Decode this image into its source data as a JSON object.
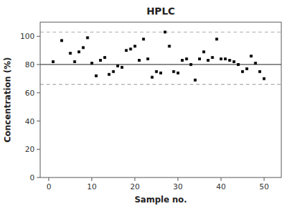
{
  "chart_data": {
    "type": "scatter",
    "title": "HPLC",
    "x_label": "Sample no.",
    "y_label": "Concentration (%)",
    "x": [
      1,
      3,
      5,
      6,
      7,
      8,
      9,
      10,
      11,
      12,
      13,
      14,
      15,
      16,
      17,
      18,
      19,
      20,
      21,
      22,
      23,
      24,
      25,
      26,
      27,
      28,
      29,
      30,
      31,
      32,
      33,
      34,
      35,
      36,
      37,
      38,
      39,
      40,
      41,
      42,
      43,
      44,
      45,
      46,
      47,
      48,
      49,
      50
    ],
    "values": [
      82,
      97,
      88,
      82,
      89,
      92,
      99,
      81,
      72,
      83,
      85,
      73,
      75,
      79,
      78,
      90,
      91,
      93,
      83,
      98,
      84,
      71,
      75,
      74,
      103,
      93,
      75,
      74,
      83,
      84,
      80,
      69,
      84,
      89,
      83,
      85,
      98,
      84,
      84,
      83,
      82,
      80,
      75,
      77,
      86,
      81,
      75,
      70
    ],
    "color": "#000000",
    "marker": "square",
    "reference_lines": [
      {
        "value": 80,
        "color": "#666666",
        "line_style": "solid"
      },
      {
        "value": 103,
        "color": "#aaaaaa",
        "line_style": "dashed"
      },
      {
        "value": 66,
        "color": "#aaaaaa",
        "line_style": "dashed"
      }
    ],
    "xlim": [
      -2,
      54
    ],
    "ylim": [
      0,
      110
    ],
    "xticks": [
      0,
      10,
      20,
      30,
      40,
      50
    ],
    "yticks": [
      0,
      20,
      40,
      60,
      80,
      100
    ],
    "grid": false
  }
}
